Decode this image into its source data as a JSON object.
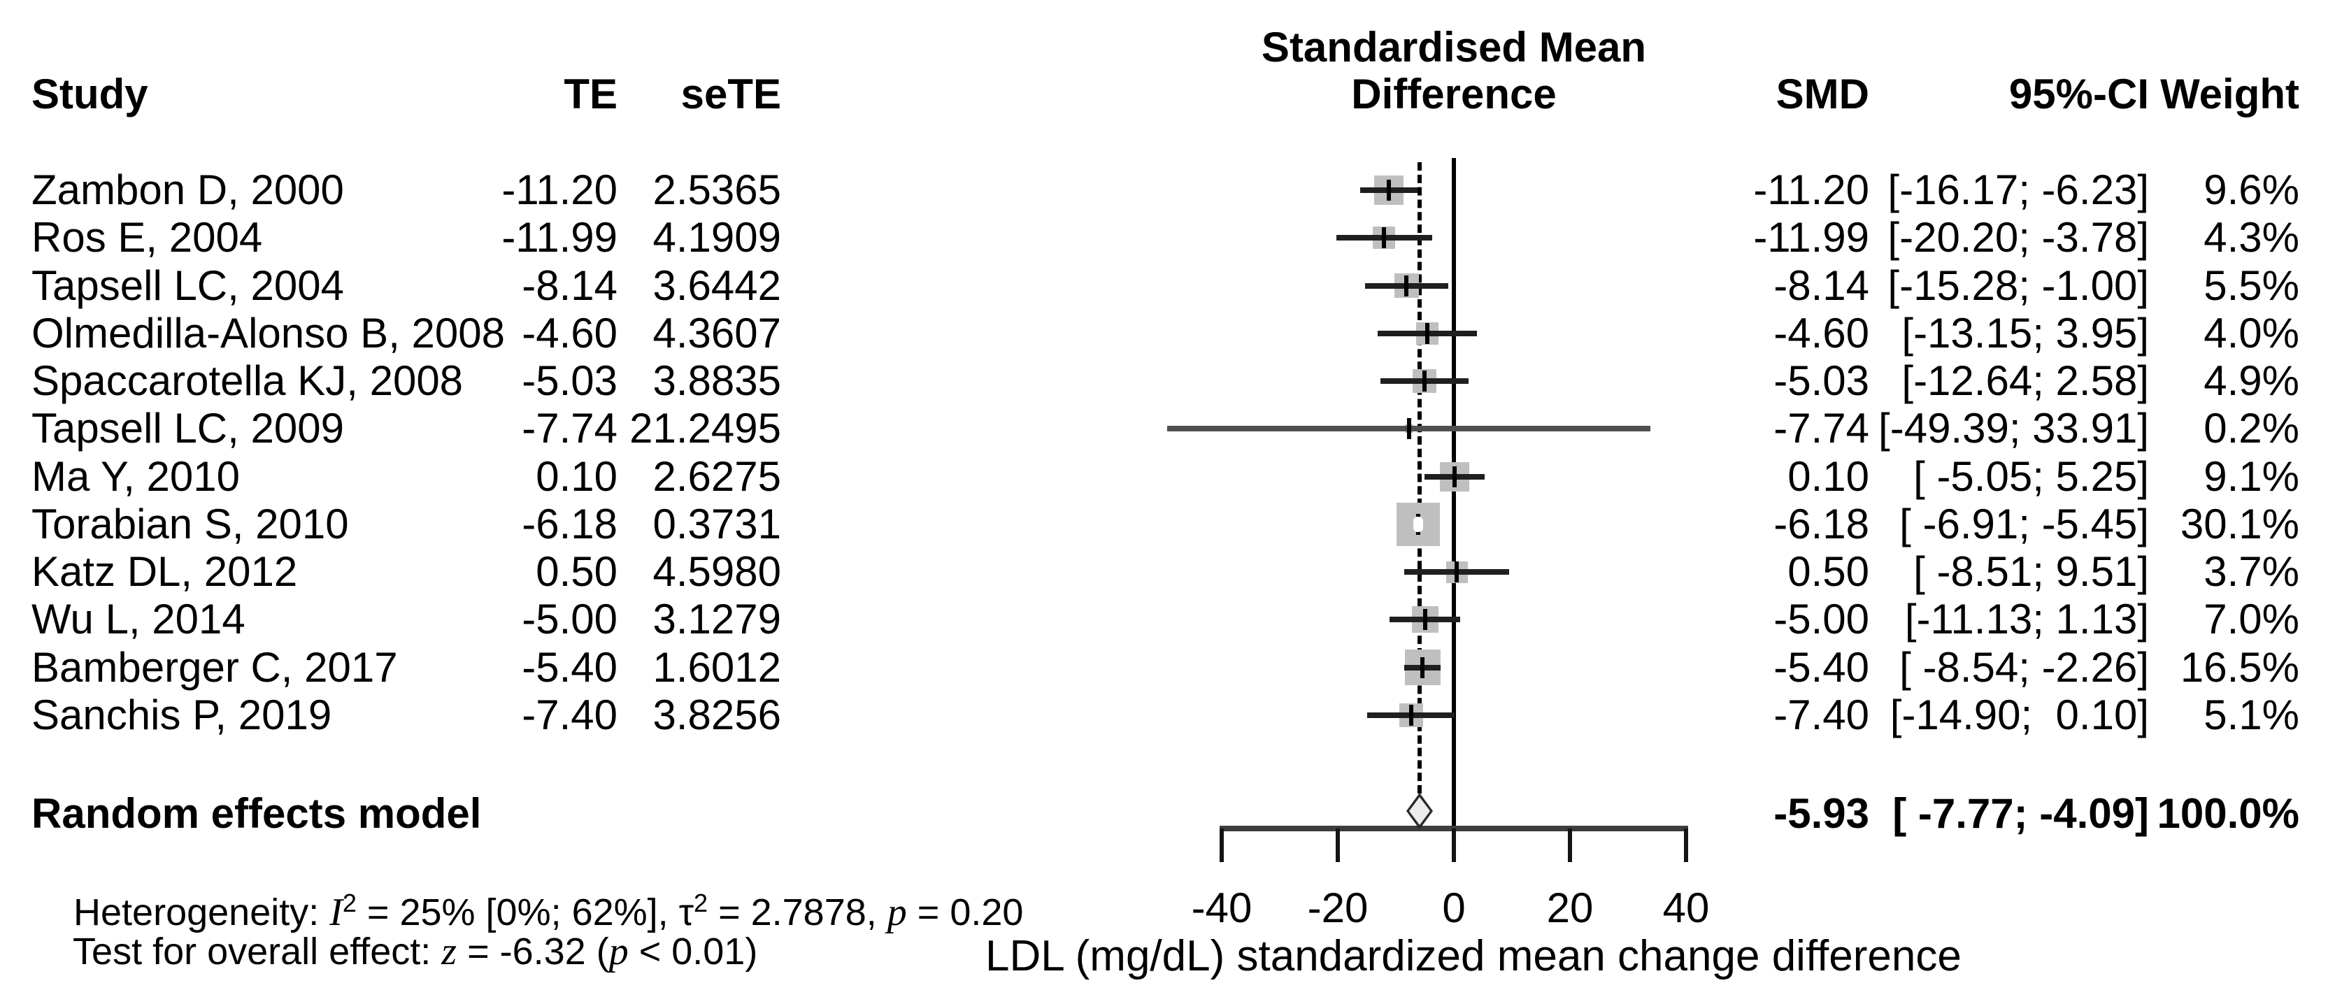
{
  "colors": {
    "square": "#bfbfbf",
    "ci_line": "#1f1f1f",
    "ci_line_dim": "#4f4f4f",
    "zero_line": "#000000",
    "pooled_dash_line": "#000000",
    "axis": "#3d3d3d",
    "diamond_fill": "#ececec",
    "diamond_border": "#2a2a2a",
    "text": "#000000"
  },
  "header": {
    "col_study": "Study",
    "col_te": "TE",
    "col_sete": "seTE",
    "plot_title_line1": "Standardised Mean",
    "plot_title_line2": "Difference",
    "col_smd": "SMD",
    "col_ci": "95%-CI",
    "col_weight": "Weight"
  },
  "chart_data": {
    "type": "forest",
    "x_axis": {
      "ticks": [
        -40,
        -20,
        0,
        20,
        40
      ],
      "tick_labels": [
        "-40",
        "-20",
        "0",
        "20",
        "40"
      ],
      "label": "LDL (mg/dL) standardized mean change difference",
      "range": [
        -52,
        36
      ],
      "zero_reference_line": 0,
      "pooled_estimate_line": -5.93
    },
    "studies": [
      {
        "study": "Zambon D, 2000",
        "te": "-11.20",
        "sete": "2.5365",
        "smd": -11.2,
        "ci_low": -16.17,
        "ci_high": -6.23,
        "smd_label": "-11.20",
        "ci_label": "[-16.17; -6.23]",
        "weight": 9.6,
        "weight_label": "9.6%"
      },
      {
        "study": "Ros E, 2004",
        "te": "-11.99",
        "sete": "4.1909",
        "smd": -11.99,
        "ci_low": -20.2,
        "ci_high": -3.78,
        "smd_label": "-11.99",
        "ci_label": "[-20.20; -3.78]",
        "weight": 4.3,
        "weight_label": "4.3%"
      },
      {
        "study": "Tapsell LC, 2004",
        "te": "-8.14",
        "sete": "3.6442",
        "smd": -8.14,
        "ci_low": -15.28,
        "ci_high": -1.0,
        "smd_label": "-8.14",
        "ci_label": "[-15.28; -1.00]",
        "weight": 5.5,
        "weight_label": "5.5%"
      },
      {
        "study": "Olmedilla-Alonso B, 2008",
        "te": "-4.60",
        "sete": "4.3607",
        "smd": -4.6,
        "ci_low": -13.15,
        "ci_high": 3.95,
        "smd_label": "-4.60",
        "ci_label": "[-13.15; 3.95]",
        "weight": 4.0,
        "weight_label": "4.0%"
      },
      {
        "study": "Spaccarotella KJ, 2008",
        "te": "-5.03",
        "sete": "3.8835",
        "smd": -5.03,
        "ci_low": -12.64,
        "ci_high": 2.58,
        "smd_label": "-5.03",
        "ci_label": "[-12.64; 2.58]",
        "weight": 4.9,
        "weight_label": "4.9%"
      },
      {
        "study": "Tapsell LC, 2009",
        "te": "-7.74",
        "sete": "21.2495",
        "smd": -7.74,
        "ci_low": -49.39,
        "ci_high": 33.91,
        "smd_label": "-7.74",
        "ci_label": "[-49.39; 33.91]",
        "weight": 0.2,
        "weight_label": "0.2%"
      },
      {
        "study": "Ma Y, 2010",
        "te": "0.10",
        "sete": "2.6275",
        "smd": 0.1,
        "ci_low": -5.05,
        "ci_high": 5.25,
        "smd_label": "0.10",
        "ci_label": "[ -5.05; 5.25]",
        "weight": 9.1,
        "weight_label": "9.1%"
      },
      {
        "study": "Torabian S, 2010",
        "te": "-6.18",
        "sete": "0.3731",
        "smd": -6.18,
        "ci_low": -6.91,
        "ci_high": -5.45,
        "smd_label": "-6.18",
        "ci_label": "[ -6.91; -5.45]",
        "weight": 30.1,
        "weight_label": "30.1%"
      },
      {
        "study": "Katz DL, 2012",
        "te": "0.50",
        "sete": "4.5980",
        "smd": 0.5,
        "ci_low": -8.51,
        "ci_high": 9.51,
        "smd_label": "0.50",
        "ci_label": "[ -8.51; 9.51]",
        "weight": 3.7,
        "weight_label": "3.7%"
      },
      {
        "study": "Wu L, 2014",
        "te": "-5.00",
        "sete": "3.1279",
        "smd": -5.0,
        "ci_low": -11.13,
        "ci_high": 1.13,
        "smd_label": "-5.00",
        "ci_label": "[-11.13; 1.13]",
        "weight": 7.0,
        "weight_label": "7.0%"
      },
      {
        "study": "Bamberger C, 2017",
        "te": "-5.40",
        "sete": "1.6012",
        "smd": -5.4,
        "ci_low": -8.54,
        "ci_high": -2.26,
        "smd_label": "-5.40",
        "ci_label": "[ -8.54; -2.26]",
        "weight": 16.5,
        "weight_label": "16.5%"
      },
      {
        "study": "Sanchis P, 2019",
        "te": "-7.40",
        "sete": "3.8256",
        "smd": -7.4,
        "ci_low": -14.9,
        "ci_high": 0.1,
        "smd_label": "-7.40",
        "ci_label": "[-14.90;  0.10]",
        "weight": 5.1,
        "weight_label": "5.1%"
      }
    ],
    "pooled": {
      "label": "Random effects model",
      "smd": -5.93,
      "ci_low": -7.77,
      "ci_high": -4.09,
      "smd_label": "-5.93",
      "ci_label": "[ -7.77; -4.09]",
      "weight_label": "100.0%"
    },
    "legend_position": "none",
    "grid": false
  },
  "stats": {
    "het": {
      "prefix": "Heterogeneity: ",
      "i": "I",
      "sup1": "2",
      "mid": " = 25% [0%; 62%], τ",
      "sup2": "2",
      "tail": " = 2.7878, ",
      "p": "p",
      "end": " = 0.20"
    },
    "test": {
      "prefix": "Test for overall effect: ",
      "z": "z",
      "mid": " = -6.32 (",
      "p": "p",
      "end": " < 0.01)"
    }
  }
}
